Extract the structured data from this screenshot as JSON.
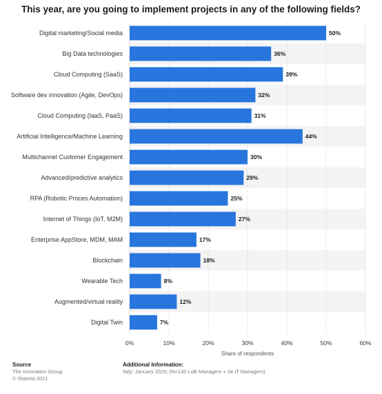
{
  "title": "This year, are you going to implement projects in any of the following fields?",
  "chart_data": {
    "type": "bar",
    "orientation": "horizontal",
    "categories": [
      "Digital marketing/Social media",
      "Big Data technologies",
      "Cloud Computing (SaaS)",
      "Software dev innovation (Agile, DevOps)",
      "Cloud Computing (IaaS, PaaS)",
      "Artificial Intelligence/Machine Learning",
      "Multichannel Customer Engagement",
      "Advanced/predictive analytics",
      "RPA (Robotic Proces Automation)",
      "Internet of Things (IoT, M2M)",
      "Enterprise AppStore, MDM, MAM",
      "Blockchain",
      "Wearable Tech",
      "Augmented/virtual reality",
      "Digital Twin"
    ],
    "values": [
      50,
      36,
      39,
      32,
      31,
      44,
      30,
      29,
      25,
      27,
      17,
      18,
      8,
      12,
      7
    ],
    "value_labels": [
      "50%",
      "36%",
      "39%",
      "32%",
      "31%",
      "44%",
      "30%",
      "29%",
      "25%",
      "27%",
      "17%",
      "18%",
      "8%",
      "12%",
      "7%"
    ],
    "xlim": [
      0,
      60
    ],
    "xticks": [
      "0%",
      "10%",
      "20%",
      "30%",
      "40%",
      "50%",
      "60%"
    ],
    "xlabel": "Share of respondents",
    "ylabel": "",
    "bar_color": "#2876dd",
    "grid": true
  },
  "footer": {
    "source_heading": "Source",
    "source_lines": [
      "The Innovation Group",
      "© Statista 2021"
    ],
    "info_heading": "Additional Information:",
    "info_lines": [
      "Italy; January 2020; (N=135 LoB Managers + 34 IT Managers)"
    ]
  }
}
